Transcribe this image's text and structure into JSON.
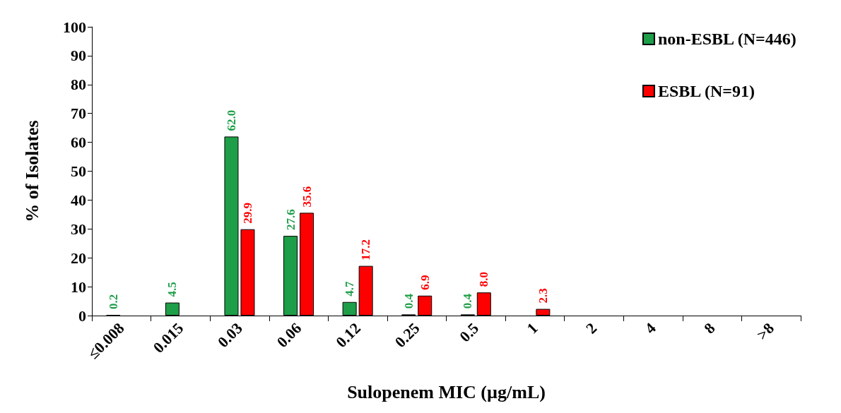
{
  "chart_data": {
    "type": "bar",
    "xlabel": "Sulopenem MIC (µg/mL)",
    "ylabel": "% of Isolates",
    "categories": [
      "≤0.008",
      "0.015",
      "0.03",
      "0.06",
      "0.12",
      "0.25",
      "0.5",
      "1",
      "2",
      "4",
      "8",
      ">8"
    ],
    "series": [
      {
        "name": "non-ESBL (N=446)",
        "color": "#1e9e48",
        "values": [
          0.2,
          4.5,
          62.0,
          27.6,
          4.7,
          0.4,
          0.4,
          null,
          null,
          null,
          null,
          null
        ],
        "value_labels": [
          "0.2",
          "4.5",
          "62.0",
          "27.6",
          "4.7",
          "0.4",
          "0.4",
          null,
          null,
          null,
          null,
          null
        ]
      },
      {
        "name": "ESBL (N=91)",
        "color": "#ff0000",
        "values": [
          null,
          null,
          29.9,
          35.6,
          17.2,
          6.9,
          8.0,
          2.3,
          null,
          null,
          null,
          null
        ],
        "value_labels": [
          null,
          null,
          "29.9",
          "35.6",
          "17.2",
          "6.9",
          "8.0",
          "2.3",
          null,
          null,
          null,
          null
        ]
      }
    ],
    "ylim": [
      0,
      100
    ],
    "yticks": [
      0,
      10,
      20,
      30,
      40,
      50,
      60,
      70,
      80,
      90,
      100
    ],
    "grid": false,
    "legend": "top right"
  }
}
